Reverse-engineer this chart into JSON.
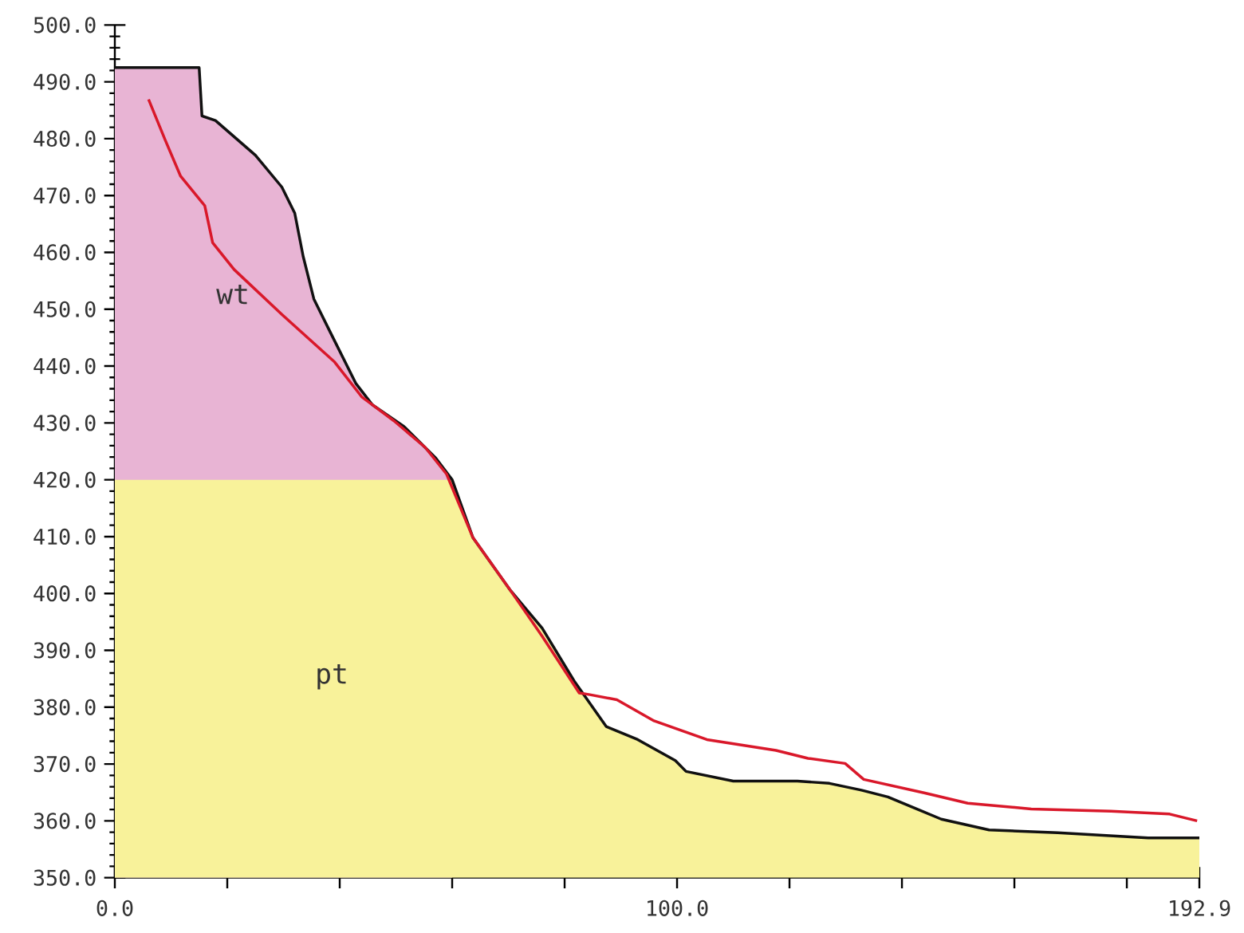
{
  "chart_data": {
    "type": "area",
    "xlim": [
      0,
      192.9
    ],
    "ylim": [
      350,
      500
    ],
    "xticks": [
      {
        "value": 0,
        "label": "0.0"
      },
      {
        "value": 20,
        "label": null
      },
      {
        "value": 40,
        "label": null
      },
      {
        "value": 60,
        "label": null
      },
      {
        "value": 80,
        "label": null
      },
      {
        "value": 100,
        "label": "100.0"
      },
      {
        "value": 120,
        "label": null
      },
      {
        "value": 140,
        "label": null
      },
      {
        "value": 160,
        "label": null
      },
      {
        "value": 180,
        "label": null
      },
      {
        "value": 192.9,
        "label": "192.9"
      }
    ],
    "yticks": [
      {
        "value": 350,
        "label": "350.0"
      },
      {
        "value": 360,
        "label": "360.0"
      },
      {
        "value": 370,
        "label": "370.0"
      },
      {
        "value": 380,
        "label": "380.0"
      },
      {
        "value": 390,
        "label": "390.0"
      },
      {
        "value": 400,
        "label": "400.0"
      },
      {
        "value": 410,
        "label": "410.0"
      },
      {
        "value": 420,
        "label": "420.0"
      },
      {
        "value": 430,
        "label": "430.0"
      },
      {
        "value": 440,
        "label": "440.0"
      },
      {
        "value": 450,
        "label": "450.0"
      },
      {
        "value": 460,
        "label": "460.0"
      },
      {
        "value": 470,
        "label": "470.0"
      },
      {
        "value": 480,
        "label": "480.0"
      },
      {
        "value": 490,
        "label": "490.0"
      },
      {
        "value": 500,
        "label": "500.0"
      }
    ],
    "grid": false,
    "series": [
      {
        "name": "wt",
        "color": "#e8b4d4",
        "x": [
          0,
          15,
          15.5,
          17.9,
          25,
          29.7,
          32,
          33.5,
          35.4,
          38.2,
          42.9,
          45.8,
          51.4,
          57.1,
          60
        ],
        "values": [
          492.5,
          492.5,
          484,
          483.2,
          477.1,
          471.5,
          466.9,
          459.3,
          451.8,
          446.2,
          436.9,
          433.2,
          429.4,
          423.8,
          420
        ]
      },
      {
        "name": "pt",
        "color": "#f8f29a",
        "x": [
          0,
          60,
          63.7,
          70.4,
          76,
          81.7,
          87.4,
          93,
          99.7,
          101.6,
          110,
          121.4,
          127.1,
          132.8,
          137.5,
          147,
          155.5,
          167.7,
          183.8,
          192.9
        ],
        "values": [
          420,
          420,
          409.8,
          400.5,
          393.9,
          384.6,
          376.6,
          374.3,
          370.6,
          368.7,
          367,
          367,
          366.6,
          365.4,
          364.2,
          360.3,
          358.4,
          357.9,
          357,
          357
        ]
      },
      {
        "type": "line",
        "color": "#111111",
        "x": [
          0,
          15,
          15.5,
          17.9,
          25,
          29.7,
          32,
          33.5,
          35.4,
          38.2,
          42.9,
          45.8,
          51.4,
          57.1,
          60,
          63.7,
          70.4,
          76,
          81.7,
          87.4,
          93,
          99.7,
          101.6,
          110,
          121.4,
          127.1,
          132.8,
          137.5,
          147,
          155.5,
          167.7,
          183.8,
          192.9
        ],
        "values": [
          492.5,
          492.5,
          484,
          483.2,
          477.1,
          471.5,
          466.9,
          459.3,
          451.8,
          446.2,
          436.9,
          433.2,
          429.4,
          423.8,
          420,
          409.8,
          400.5,
          393.9,
          384.6,
          376.6,
          374.3,
          370.6,
          368.7,
          367,
          367,
          366.6,
          365.4,
          364.2,
          360.3,
          358.4,
          357.9,
          357,
          357
        ]
      },
      {
        "type": "line",
        "color": "#d9182a",
        "x": [
          6,
          8.9,
          11.7,
          16,
          17.4,
          21.2,
          29.7,
          39.1,
          43.9,
          49.6,
          55.2,
          59,
          63.7,
          70.4,
          76,
          82.6,
          84.5,
          89.3,
          95.9,
          105.3,
          117.6,
          123.3,
          129.9,
          133.2,
          144.1,
          151.7,
          163,
          177.2,
          187.6,
          192.5
        ],
        "values": [
          486.9,
          479.9,
          473.4,
          468.2,
          461.7,
          457,
          449.1,
          440.7,
          434.6,
          430.4,
          425.7,
          421,
          409.8,
          400.5,
          392.5,
          382.5,
          382.2,
          381.3,
          377.6,
          374.3,
          372.4,
          371,
          370.1,
          367.3,
          364.9,
          363.1,
          362.1,
          361.7,
          361.2,
          360
        ]
      }
    ]
  }
}
